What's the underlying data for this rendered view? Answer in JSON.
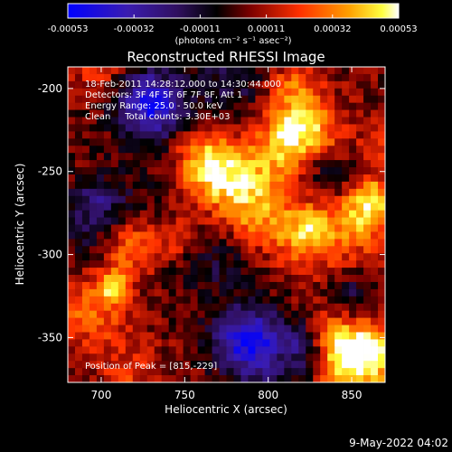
{
  "colorbar": {
    "ticks": [
      "-0.00053",
      "-0.00032",
      "-0.00011",
      "0.00011",
      "0.00032",
      "0.00053"
    ],
    "unit_label": "(photons cm⁻² s⁻¹ asec⁻²)"
  },
  "image": {
    "title": "Reconstructed RHESSI Image",
    "annotations": [
      "18-Feb-2011 14:28:12.000 to 14:30:44.000",
      "Detectors: 3F 4F 5F 6F 7F 8F, Att 1",
      "Energy Range: 25.0 - 50.0 keV",
      "Clean     Total counts: 3.30E+03"
    ],
    "peak_label": "Position of Peak = [815,-229]"
  },
  "footer": {
    "timestamp": "9-May-2022 04:02"
  },
  "chart_data": {
    "type": "heatmap",
    "title": "Reconstructed RHESSI Image",
    "xlabel": "Heliocentric X (arcsec)",
    "ylabel": "Heliocentric Y (arcsec)",
    "xlim": [
      680,
      870
    ],
    "ylim": [
      -377,
      -187
    ],
    "xticks": [
      700,
      750,
      800,
      850
    ],
    "yticks": [
      -200,
      -250,
      -300,
      -350
    ],
    "color_range": [
      -0.00053,
      0.00053
    ],
    "colormap": [
      "#0000ff",
      "#4b0082",
      "#000000",
      "#8b0000",
      "#ff4500",
      "#ffa500",
      "#ffff00",
      "#ffffff"
    ],
    "peak": [
      815,
      -229
    ]
  }
}
